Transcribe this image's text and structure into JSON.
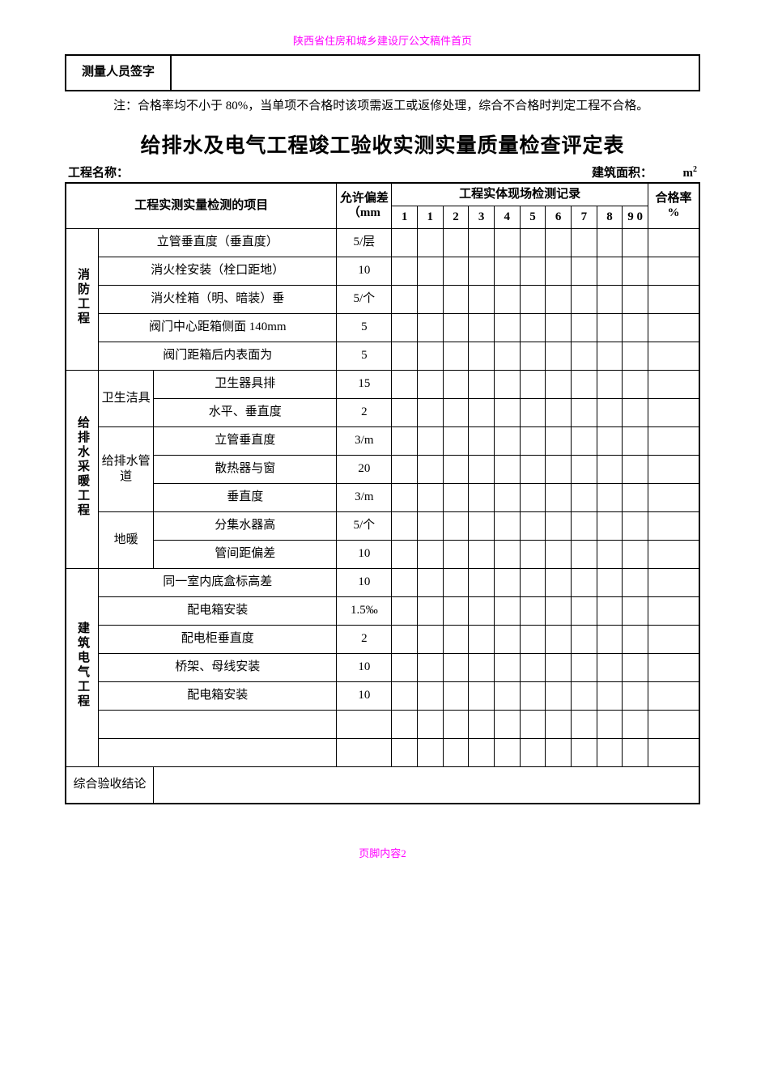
{
  "header_top": "陕西省住房和城乡建设厅公文稿件首页",
  "signature_label": "测量人员签字",
  "note_text": "注：合格率均不小于 80%，当单项不合格时该项需返工或返修处理，综合不合格时判定工程不合格。",
  "title": "给排水及电气工程竣工验收实测实量质量检查评定表",
  "meta": {
    "project_label": "工程名称：",
    "project_value": "",
    "area_label": "建筑面积：",
    "area_value": "",
    "area_unit_m": "m",
    "area_unit_sup": "2"
  },
  "headers": {
    "item_col": "工程实测实量检测的项目",
    "tolerance_col": "允许偏差（mm",
    "record_col": "工程实体现场检测记录",
    "rate_col": "合格率 %",
    "record_nums": [
      "1",
      "1",
      "2",
      "3",
      "4",
      "5",
      "6",
      "7",
      "8",
      "9 0"
    ]
  },
  "cat1": {
    "label": "消防工程"
  },
  "cat1_rows": [
    {
      "item": "立管垂直度（垂直度）",
      "tol": "5/层"
    },
    {
      "item": "消火栓安装（栓口距地）",
      "tol": "10"
    },
    {
      "item": "消火栓箱（明、暗装）垂",
      "tol": "5/个"
    },
    {
      "item": "阀门中心距箱侧面 140mm",
      "tol": "5"
    },
    {
      "item": "阀门距箱后内表面为",
      "tol": "5"
    }
  ],
  "cat2": {
    "label": "给排水采暖工程"
  },
  "cat2_sub1": {
    "label": "卫生洁具"
  },
  "cat2_sub1_rows": [
    {
      "item": "卫生器具排",
      "tol": "15"
    },
    {
      "item": "水平、垂直度",
      "tol": "2"
    }
  ],
  "cat2_sub2": {
    "label": "给排水管道"
  },
  "cat2_sub2_rows": [
    {
      "item": "立管垂直度",
      "tol": "3/m"
    },
    {
      "item": "散热器与窗",
      "tol": "20"
    },
    {
      "item": "垂直度",
      "tol": "3/m"
    }
  ],
  "cat2_sub3": {
    "label": "地暖"
  },
  "cat2_sub3_rows": [
    {
      "item": "分集水器高",
      "tol": "5/个"
    },
    {
      "item": "管间距偏差",
      "tol": "10"
    }
  ],
  "cat3": {
    "label": "建筑电气工程"
  },
  "cat3_rows": [
    {
      "item": "同一室内底盒标高差",
      "tol": "10"
    },
    {
      "item": "配电箱安装",
      "tol": "1.5‰"
    },
    {
      "item": "配电柜垂直度",
      "tol": "2"
    },
    {
      "item": "桥架、母线安装",
      "tol": "10"
    },
    {
      "item": "配电箱安装",
      "tol": "10"
    },
    {
      "item": "",
      "tol": ""
    },
    {
      "item": "",
      "tol": ""
    }
  ],
  "conclusion_label": "综合验收结论",
  "footer_prefix": "页脚内容",
  "footer_page": "2"
}
